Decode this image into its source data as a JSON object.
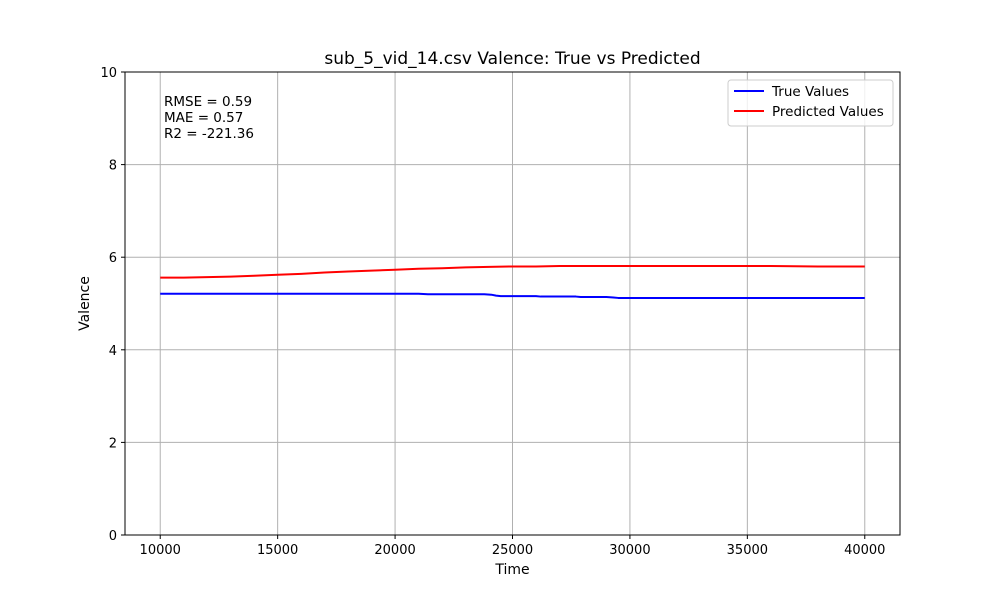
{
  "chart_data": {
    "type": "line",
    "title": "sub_5_vid_14.csv Valence: True vs Predicted",
    "xlabel": "Time",
    "ylabel": "Valence",
    "xlim": [
      8500,
      41500
    ],
    "ylim": [
      0,
      10
    ],
    "xticks": [
      10000,
      15000,
      20000,
      25000,
      30000,
      35000,
      40000
    ],
    "yticks": [
      0,
      2,
      4,
      6,
      8,
      10
    ],
    "grid": true,
    "legend_position": "top-right",
    "annotations": [
      "RMSE = 0.59",
      "MAE = 0.57",
      "R2 = -221.36"
    ],
    "series": [
      {
        "name": "True Values",
        "color": "#0000ff",
        "x": [
          10000,
          12000,
          14000,
          16000,
          18000,
          20000,
          21000,
          21400,
          22000,
          23000,
          23800,
          24100,
          24300,
          24500,
          25000,
          25500,
          26000,
          26200,
          27000,
          27700,
          27900,
          28500,
          29000,
          29300,
          29500,
          30000,
          32000,
          34000,
          36000,
          38000,
          40000
        ],
        "values": [
          5.21,
          5.21,
          5.21,
          5.21,
          5.21,
          5.21,
          5.21,
          5.2,
          5.2,
          5.2,
          5.2,
          5.19,
          5.17,
          5.16,
          5.16,
          5.16,
          5.16,
          5.15,
          5.15,
          5.15,
          5.14,
          5.14,
          5.14,
          5.13,
          5.12,
          5.12,
          5.12,
          5.12,
          5.12,
          5.12,
          5.12
        ]
      },
      {
        "name": "Predicted Values",
        "color": "#ff0000",
        "x": [
          10000,
          11000,
          12000,
          13000,
          14000,
          15000,
          16000,
          17000,
          18000,
          19000,
          20000,
          21000,
          22000,
          23000,
          24000,
          25000,
          26000,
          27000,
          28000,
          29000,
          30000,
          32000,
          34000,
          36000,
          38000,
          40000
        ],
        "values": [
          5.56,
          5.56,
          5.57,
          5.58,
          5.6,
          5.62,
          5.64,
          5.67,
          5.69,
          5.71,
          5.73,
          5.75,
          5.76,
          5.78,
          5.79,
          5.8,
          5.8,
          5.81,
          5.81,
          5.81,
          5.81,
          5.81,
          5.81,
          5.81,
          5.8,
          5.8
        ]
      }
    ]
  }
}
